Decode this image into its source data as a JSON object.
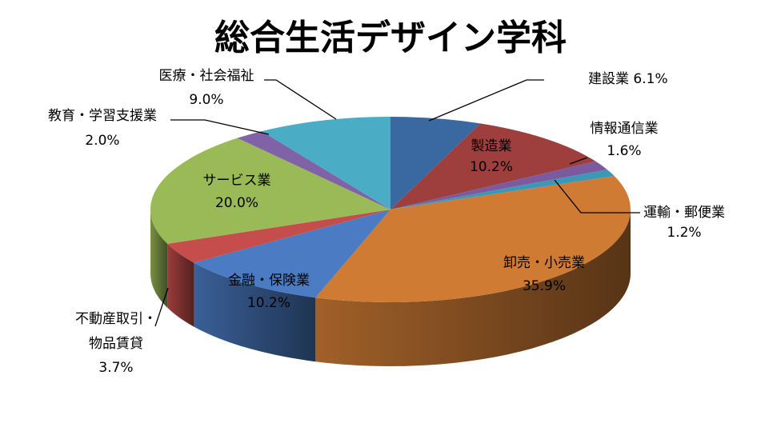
{
  "chart_data": {
    "type": "pie",
    "title": "総合生活デザイン学科",
    "slices": [
      {
        "label": "建設業",
        "value": 6.1,
        "display": "6.1%",
        "color": "#3a68a1"
      },
      {
        "label": "製造業",
        "value": 10.2,
        "display": "10.2%",
        "color": "#9e3f3d"
      },
      {
        "label": "情報通信業",
        "value": 1.6,
        "display": "1.6%",
        "color": "#7b5aa0"
      },
      {
        "label": "運輸・郵便業",
        "value": 1.2,
        "display": "1.2%",
        "color": "#3c98b5"
      },
      {
        "label": "卸売・小売業",
        "value": 35.9,
        "display": "35.9%",
        "color": "#cf7b34"
      },
      {
        "label": "金融・保険業",
        "value": 10.2,
        "display": "10.2%",
        "color": "#4a7bc3"
      },
      {
        "label": "不動産取引・物品賃貸",
        "value": 3.7,
        "display": "3.7%",
        "color": "#c54d4b"
      },
      {
        "label": "サービス業",
        "value": 20.0,
        "display": "20.0%",
        "color": "#9aba58"
      },
      {
        "label": "教育・学習支援業",
        "value": 2.0,
        "display": "2.0%",
        "color": "#8062a6"
      },
      {
        "label": "医療・社会福祉",
        "value": 9.0,
        "display": "9.0%",
        "color": "#4bacc6"
      }
    ]
  }
}
